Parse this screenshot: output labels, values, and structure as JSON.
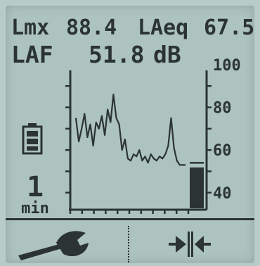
{
  "readout": {
    "lmx_label": "Lmx",
    "lmx_value": "88.4",
    "laeq_label": "LAeq",
    "laeq_value": "67.5",
    "laf_label": "LAF",
    "laf_value": "51.8",
    "unit": "dB"
  },
  "time_window": {
    "value": "1",
    "unit": "min"
  },
  "chart_data": {
    "type": "line",
    "ylim": [
      32,
      100
    ],
    "yticks": [
      "100",
      "80",
      "60",
      "40"
    ],
    "series": [
      {
        "values": [
          75,
          64,
          70,
          77,
          66,
          72,
          62,
          73,
          70,
          76,
          67,
          79,
          73,
          86,
          75,
          72,
          60,
          65,
          56,
          55,
          58,
          57,
          60,
          55,
          57,
          54,
          58,
          56,
          55,
          57,
          56,
          58,
          62,
          75,
          61,
          55,
          53,
          53,
          53
        ]
      }
    ],
    "current_bar": {
      "value": 51.8,
      "peak": 54
    }
  },
  "toolbar": {
    "settings_icon": "wrench-icon",
    "zoom_icon": "pinch-zoom-icon"
  }
}
